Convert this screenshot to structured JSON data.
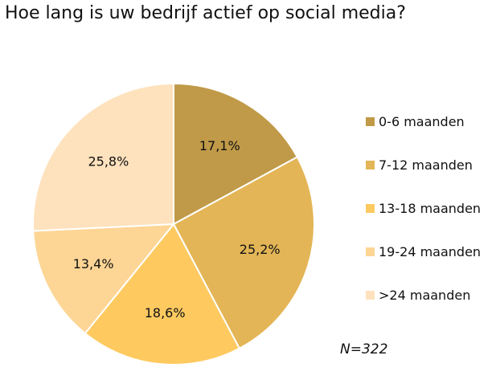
{
  "chart_data": {
    "type": "pie",
    "title": "Hoe lang is uw bedrijf actief op social media?",
    "categories": [
      "0-6 maanden",
      "7-12 maanden",
      "13-18 maanden",
      "19-24 maanden",
      ">24 maanden"
    ],
    "values": [
      17.1,
      25.2,
      18.6,
      13.4,
      25.8
    ],
    "value_labels": [
      "17,1%",
      "25,2%",
      "18,6%",
      "13,4%",
      "25,8%"
    ],
    "colors": [
      "#C09A48",
      "#E3B556",
      "#FECA60",
      "#FDD595",
      "#FEE2BD"
    ],
    "legend_position": "right",
    "annotation": "N=322"
  }
}
